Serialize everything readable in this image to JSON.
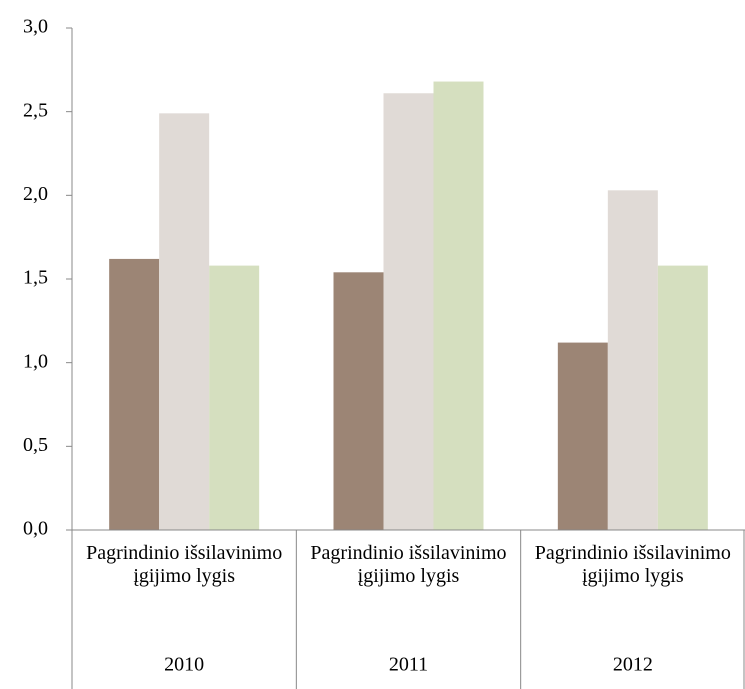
{
  "chart_data": {
    "type": "bar",
    "categories": [
      "Pagrindinio išsilavinimo įgijimo lygis",
      "Pagrindinio išsilavinimo įgijimo lygis",
      "Pagrindinio išsilavinimo įgijimo lygis"
    ],
    "groups": [
      "2010",
      "2011",
      "2012"
    ],
    "series": [
      {
        "color": "#9c8575",
        "values": [
          1.62,
          1.54,
          1.12
        ]
      },
      {
        "color": "#e0dad6",
        "values": [
          2.49,
          2.61,
          2.03
        ]
      },
      {
        "color": "#d5dfbf",
        "values": [
          1.58,
          2.68,
          1.58
        ]
      }
    ],
    "ylim": [
      0,
      3
    ],
    "yticks": [
      {
        "value": 0,
        "label": "0,0"
      },
      {
        "value": 0.5,
        "label": "0,5"
      },
      {
        "value": 1,
        "label": "1,0"
      },
      {
        "value": 1.5,
        "label": "1,5"
      },
      {
        "value": 2,
        "label": "2,0"
      },
      {
        "value": 2.5,
        "label": "2,5"
      },
      {
        "value": 3,
        "label": "3,0"
      }
    ],
    "grid": false
  }
}
